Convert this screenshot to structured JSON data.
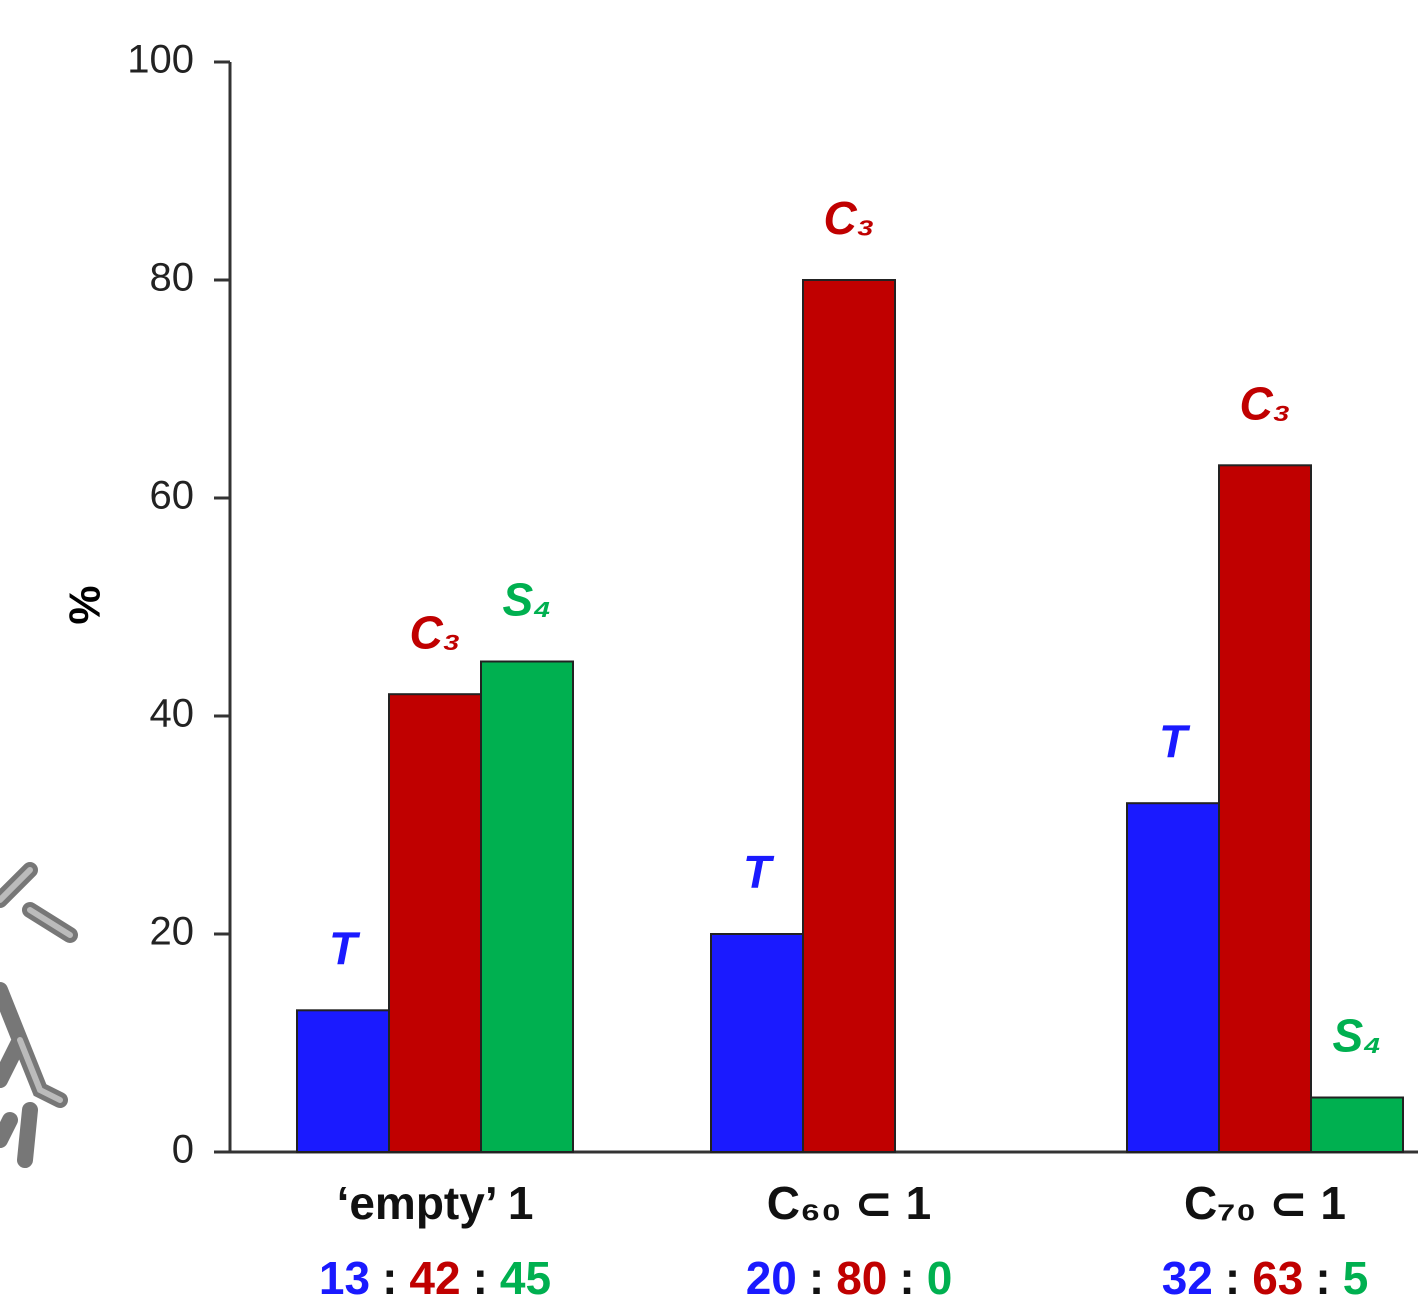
{
  "chart_data": {
    "type": "bar",
    "y_label": "%",
    "categories": [
      "‘empty’ 1",
      "C₆₀ ⊂ 1",
      "C₇₀ ⊂ 1"
    ],
    "series": [
      {
        "name": "T",
        "color": "#1a1aff",
        "values": [
          13,
          20,
          32
        ]
      },
      {
        "name": "C₃",
        "color": "#c00000",
        "values": [
          42,
          80,
          63
        ]
      },
      {
        "name": "S₄",
        "color": "#00b050",
        "values": [
          45,
          0,
          5
        ]
      }
    ],
    "ratio_separator": ":",
    "ylim": [
      0,
      100
    ],
    "yticks": [
      0,
      20,
      40,
      60,
      80,
      100
    ],
    "grid": false
  }
}
